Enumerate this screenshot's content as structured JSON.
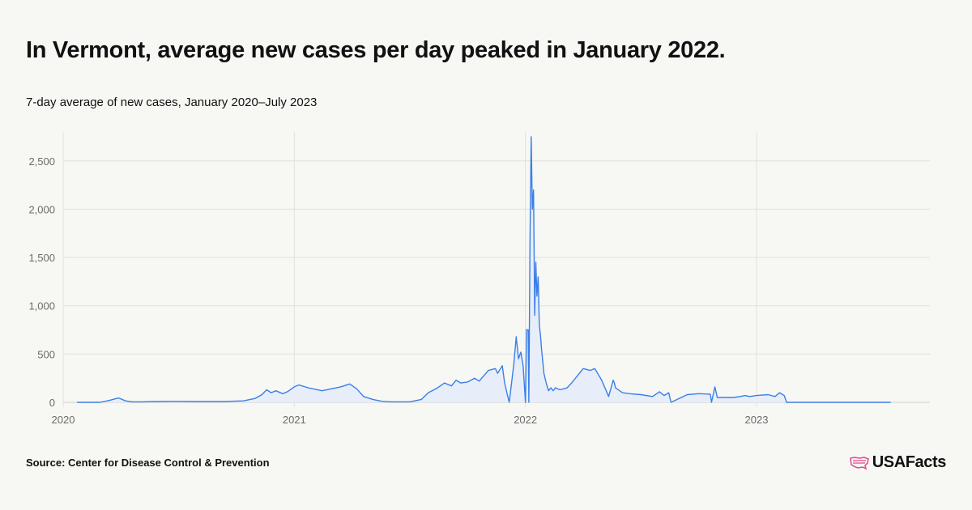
{
  "title": "In Vermont, average new cases per day peaked in January 2022.",
  "subtitle": "7-day average of new cases, January 2020–July 2023",
  "source": "Source: Center for Disease Control & Prevention",
  "logo": {
    "text": "USAFacts",
    "icon": "us-map-flag-icon"
  },
  "colors": {
    "line": "#3b7fe6",
    "fill": "#e7eefa",
    "grid": "#e0e0de",
    "background": "#f7f7f4"
  },
  "chart_data": {
    "type": "area",
    "title": "In Vermont, average new cases per day peaked in January 2022.",
    "subtitle": "7-day average of new cases, January 2020–July 2023",
    "xlabel": "",
    "ylabel": "",
    "xlim": [
      2020.0,
      2023.75
    ],
    "ylim": [
      0,
      2800
    ],
    "yticks": [
      0,
      500,
      1000,
      1500,
      2000,
      2500
    ],
    "ytick_labels": [
      "0",
      "500",
      "1,000",
      "1,500",
      "2,000",
      "2,500"
    ],
    "xticks": [
      2020,
      2021,
      2022,
      2023
    ],
    "xtick_labels": [
      "2020",
      "2021",
      "2022",
      "2023"
    ],
    "grid": true,
    "series": [
      {
        "x": [
          2020.06,
          2020.16,
          2020.2,
          2020.24,
          2020.27,
          2020.3,
          2020.34,
          2020.4,
          2020.48,
          2020.55,
          2020.62,
          2020.7,
          2020.78,
          2020.83,
          2020.86,
          2020.88,
          2020.9,
          2020.92,
          2020.95,
          2020.97,
          2021.0,
          2021.02,
          2021.06,
          2021.12,
          2021.16,
          2021.2,
          2021.24,
          2021.27,
          2021.3,
          2021.34,
          2021.38,
          2021.42,
          2021.46,
          2021.5,
          2021.55,
          2021.58,
          2021.62,
          2021.65,
          2021.68,
          2021.7,
          2021.72,
          2021.75,
          2021.78,
          2021.8,
          2021.84,
          2021.87,
          2021.88,
          2021.9,
          2021.91,
          2021.92,
          2021.93,
          2021.95,
          2021.96,
          2021.97,
          2021.98,
          2021.99,
          2021.995,
          2022.0,
          2022.005,
          2022.012,
          2022.015,
          2022.02,
          2022.025,
          2022.03,
          2022.035,
          2022.04,
          2022.045,
          2022.05,
          2022.055,
          2022.06,
          2022.065,
          2022.07,
          2022.08,
          2022.09,
          2022.1,
          2022.11,
          2022.12,
          2022.13,
          2022.15,
          2022.18,
          2022.2,
          2022.25,
          2022.28,
          2022.3,
          2022.33,
          2022.36,
          2022.38,
          2022.385,
          2022.39,
          2022.42,
          2022.45,
          2022.5,
          2022.55,
          2022.58,
          2022.6,
          2022.62,
          2022.63,
          2022.7,
          2022.75,
          2022.8,
          2022.805,
          2022.82,
          2022.83,
          2022.9,
          2022.93,
          2022.95,
          2022.97,
          2023.0,
          2023.05,
          2023.08,
          2023.1,
          2023.12,
          2023.13,
          2023.3,
          2023.5,
          2023.58
        ],
        "y": [
          0,
          0,
          20,
          45,
          15,
          5,
          5,
          8,
          10,
          8,
          8,
          8,
          15,
          40,
          80,
          130,
          100,
          120,
          90,
          110,
          160,
          180,
          150,
          120,
          140,
          160,
          190,
          140,
          60,
          30,
          10,
          5,
          5,
          5,
          30,
          100,
          150,
          200,
          170,
          230,
          200,
          210,
          250,
          220,
          330,
          350,
          300,
          380,
          200,
          100,
          0,
          400,
          680,
          450,
          520,
          380,
          200,
          0,
          750,
          750,
          0,
          1750,
          2750,
          2000,
          2200,
          900,
          1450,
          1100,
          1300,
          800,
          700,
          550,
          300,
          200,
          120,
          150,
          120,
          150,
          130,
          150,
          200,
          350,
          330,
          350,
          230,
          60,
          230,
          200,
          150,
          100,
          90,
          80,
          60,
          110,
          70,
          100,
          0,
          80,
          90,
          85,
          0,
          160,
          50,
          50,
          60,
          70,
          60,
          70,
          80,
          60,
          100,
          70,
          0,
          0,
          0,
          0
        ]
      }
    ]
  }
}
